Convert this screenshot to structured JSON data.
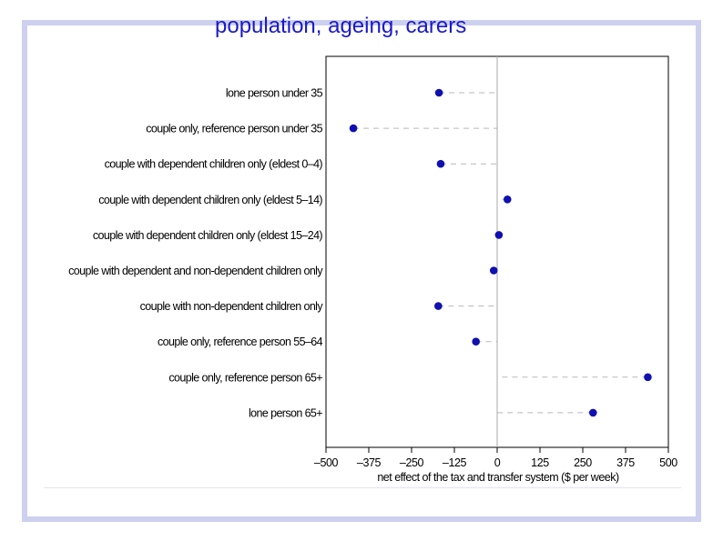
{
  "slide": {
    "title": "population, ageing, carers"
  },
  "colors": {
    "title": "#1a1acc",
    "frame": "#cdd0ef",
    "marker": "#1010b0",
    "leader": "#b8b8b8"
  },
  "chart_data": {
    "type": "scatter",
    "title": "",
    "xlabel": "net effect of the tax and transfer system ($ per week)",
    "ylabel": "",
    "xlim": [
      -500,
      500
    ],
    "xticks": [
      -500,
      -375,
      -250,
      -125,
      0,
      125,
      250,
      375,
      500
    ],
    "xtick_labels": [
      "–500",
      "–375",
      "–250",
      "–125",
      "0",
      "125",
      "250",
      "375",
      "500"
    ],
    "grid": false,
    "categories": [
      "lone person under 35",
      "couple only, reference person under 35",
      "couple with dependent children only (eldest 0–4)",
      "couple with dependent children only (eldest 5–14)",
      "couple with dependent children only (eldest 15–24)",
      "couple with dependent and non-dependent children only",
      "couple with non-dependent children only",
      "couple only, reference person 55–64",
      "couple only, reference person 65+",
      "lone person 65+"
    ],
    "values": [
      -170,
      -420,
      -165,
      30,
      5,
      -10,
      -172,
      -62,
      440,
      280
    ]
  }
}
